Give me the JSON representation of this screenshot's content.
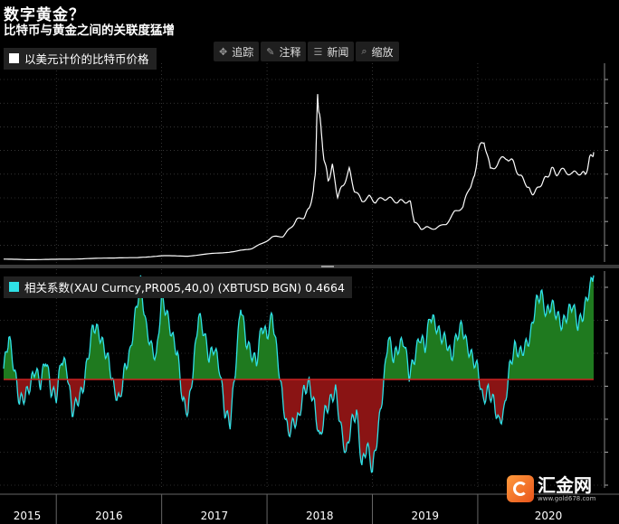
{
  "header": {
    "title": "数字黄金？",
    "subtitle": "比特币与黄金之间的关联度猛增"
  },
  "toolbar": [
    {
      "label": "追踪",
      "icon": "crosshair-icon",
      "glyph": "✥"
    },
    {
      "label": "注释",
      "icon": "annotate-icon",
      "glyph": "✎"
    },
    {
      "label": "新闻",
      "icon": "news-icon",
      "glyph": "☰"
    },
    {
      "label": "缩放",
      "icon": "zoom-icon",
      "glyph": "⌕"
    }
  ],
  "watermark": {
    "name": "汇金网",
    "url": "www.gold678.com"
  },
  "colors": {
    "background": "#000000",
    "price_line": "#ffffff",
    "corr_line": "#2fe0e6",
    "positive_fill": "#1f7a1f",
    "negative_fill": "#8a1414",
    "grid": "#555555"
  },
  "chart_data": [
    {
      "type": "line",
      "legend": "以美元计价的比特币价格",
      "x_range": [
        2015.0,
        2020.6
      ],
      "y_range": [
        0,
        20800
      ],
      "grid": true,
      "x": [
        2015.0,
        2015.25,
        2015.5,
        2015.75,
        2016.0,
        2016.25,
        2016.5,
        2016.75,
        2017.0,
        2017.2,
        2017.35,
        2017.45,
        2017.55,
        2017.65,
        2017.72,
        2017.78,
        2017.85,
        2017.9,
        2017.94,
        2017.96,
        2017.98,
        2018.0,
        2018.04,
        2018.08,
        2018.12,
        2018.17,
        2018.22,
        2018.28,
        2018.33,
        2018.4,
        2018.47,
        2018.53,
        2018.6,
        2018.67,
        2018.74,
        2018.8,
        2018.86,
        2018.9,
        2018.96,
        2019.02,
        2019.1,
        2019.2,
        2019.28,
        2019.36,
        2019.42,
        2019.47,
        2019.5,
        2019.56,
        2019.62,
        2019.7,
        2019.78,
        2019.84,
        2019.9,
        2019.96,
        2020.0,
        2020.04,
        2020.1,
        2020.15,
        2020.2,
        2020.25,
        2020.32,
        2020.4,
        2020.47,
        2020.52,
        2020.56,
        2020.6
      ],
      "y": [
        300,
        250,
        280,
        330,
        430,
        440,
        650,
        620,
        900,
        1100,
        1400,
        1900,
        2600,
        2700,
        3500,
        4400,
        4700,
        5600,
        7300,
        9800,
        17500,
        15000,
        11000,
        8500,
        10000,
        6900,
        8000,
        9600,
        7500,
        6400,
        6800,
        6300,
        6700,
        6600,
        6300,
        6400,
        6200,
        4200,
        3500,
        3600,
        3500,
        4000,
        5200,
        5800,
        7800,
        8800,
        11500,
        12800,
        9600,
        10500,
        11000,
        10300,
        9000,
        8200,
        7300,
        7200,
        8200,
        8800,
        9700,
        9300,
        9600,
        9200,
        9400,
        9100,
        10700,
        11500
      ]
    },
    {
      "type": "area",
      "legend": "相关系数(XAU Curncy,PR005,40,0) (XBTUSD BGN) 0.4664",
      "x_range": [
        2015.0,
        2020.6
      ],
      "y_range": [
        -0.5,
        0.5
      ],
      "zero_line": 0,
      "grid": true,
      "x": [
        2015.0,
        2015.05,
        2015.1,
        2015.15,
        2015.2,
        2015.25,
        2015.3,
        2015.35,
        2015.4,
        2015.45,
        2015.5,
        2015.55,
        2015.6,
        2015.65,
        2015.7,
        2015.75,
        2015.8,
        2015.85,
        2015.9,
        2015.95,
        2016.0,
        2016.05,
        2016.1,
        2016.15,
        2016.2,
        2016.25,
        2016.3,
        2016.35,
        2016.4,
        2016.45,
        2016.5,
        2016.55,
        2016.6,
        2016.65,
        2016.7,
        2016.75,
        2016.8,
        2016.85,
        2016.9,
        2016.95,
        2017.0,
        2017.05,
        2017.1,
        2017.15,
        2017.2,
        2017.25,
        2017.3,
        2017.35,
        2017.4,
        2017.45,
        2017.5,
        2017.55,
        2017.6,
        2017.65,
        2017.7,
        2017.75,
        2017.8,
        2017.85,
        2017.9,
        2017.95,
        2018.0,
        2018.05,
        2018.1,
        2018.15,
        2018.2,
        2018.25,
        2018.3,
        2018.35,
        2018.4,
        2018.45,
        2018.5,
        2018.55,
        2018.6,
        2018.65,
        2018.7,
        2018.75,
        2018.8,
        2018.85,
        2018.9,
        2018.95,
        2019.0,
        2019.05,
        2019.1,
        2019.15,
        2019.2,
        2019.25,
        2019.3,
        2019.35,
        2019.4,
        2019.45,
        2019.5,
        2019.55,
        2019.6,
        2019.65,
        2019.7,
        2019.75,
        2019.8,
        2019.85,
        2019.9,
        2019.95,
        2020.0,
        2020.05,
        2020.1,
        2020.15,
        2020.2,
        2020.25,
        2020.3,
        2020.35,
        2020.4,
        2020.45,
        2020.5,
        2020.55,
        2020.6
      ],
      "values": [
        0.05,
        0.2,
        0.05,
        -0.1,
        -0.08,
        -0.03,
        0.05,
        -0.02,
        0.1,
        -0.05,
        -0.08,
        0.1,
        0.05,
        -0.15,
        -0.1,
        -0.05,
        0.1,
        0.25,
        0.22,
        0.15,
        0.08,
        -0.05,
        -0.1,
        0.05,
        0.12,
        0.3,
        0.45,
        0.25,
        0.15,
        0.1,
        0.38,
        0.3,
        0.2,
        0.12,
        -0.1,
        -0.15,
        0.05,
        0.3,
        0.22,
        0.1,
        0.15,
        0.05,
        -0.15,
        -0.2,
        0.05,
        0.35,
        0.18,
        0.12,
        0.08,
        0.25,
        0.2,
        0.3,
        0.1,
        -0.1,
        -0.25,
        -0.2,
        -0.18,
        -0.05,
        -0.02,
        -0.12,
        -0.28,
        -0.15,
        -0.1,
        -0.05,
        -0.22,
        -0.35,
        -0.2,
        -0.15,
        -0.4,
        -0.3,
        -0.42,
        -0.25,
        -0.05,
        0.2,
        0.1,
        0.15,
        0.18,
        0.02,
        0.1,
        0.2,
        0.15,
        0.3,
        0.25,
        0.2,
        0.18,
        0.1,
        0.2,
        0.25,
        0.15,
        0.1,
        0.05,
        -0.1,
        -0.05,
        -0.1,
        -0.2,
        -0.15,
        0.05,
        0.15,
        0.12,
        0.15,
        0.2,
        0.35,
        0.4,
        0.3,
        0.35,
        0.3,
        0.25,
        0.3,
        0.35,
        0.25,
        0.3,
        0.4,
        0.48
      ]
    }
  ],
  "x_axis": {
    "labels": [
      {
        "label": "2015",
        "x": 2015.2
      },
      {
        "label": "2016",
        "x": 2016.0
      },
      {
        "label": "2017",
        "x": 2017.0
      },
      {
        "label": "2018",
        "x": 2018.0
      },
      {
        "label": "2019",
        "x": 2019.0
      },
      {
        "label": "2020",
        "x": 2020.0
      }
    ],
    "boundaries": [
      2015.5,
      2016.5,
      2017.5,
      2018.5,
      2019.5
    ]
  }
}
